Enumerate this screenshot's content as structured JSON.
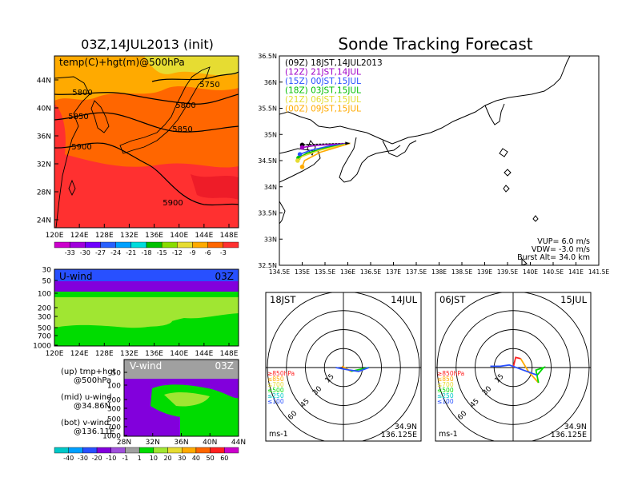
{
  "main_title": "Sonde Tracking Forecast",
  "panels": {
    "temp_map": {
      "title": "03Z,14JUL2013 (init)",
      "label": "temp(C)+hgt(m)@500hPa",
      "lat_ticks": [
        "44N",
        "40N",
        "36N",
        "32N",
        "28N",
        "24N"
      ],
      "lon_ticks": [
        "120E",
        "124E",
        "128E",
        "132E",
        "136E",
        "140E",
        "144E",
        "148E"
      ],
      "contour_labels": [
        "5750",
        "5800",
        "5800",
        "5850",
        "5850",
        "5900",
        "5900"
      ],
      "colorbar_ticks": [
        "-33",
        "-30",
        "-27",
        "-24",
        "-21",
        "-18",
        "-15",
        "-12",
        "-9",
        "-6",
        "-3"
      ],
      "colorbar_colors": [
        "#cc00cc",
        "#a000dc",
        "#6e00ff",
        "#2860ff",
        "#00a0ff",
        "#00dcdc",
        "#00c000",
        "#88dc00",
        "#e6dc32",
        "#ffaa00",
        "#ff6600",
        "#ff3030"
      ]
    },
    "uwind": {
      "label": "U-wind",
      "time": "03Z",
      "p_ticks": [
        "30",
        "50",
        "100",
        "200",
        "300",
        "500",
        "700",
        "1000"
      ],
      "lon_ticks": [
        "120E",
        "124E",
        "128E",
        "132E",
        "136E",
        "140E",
        "144E",
        "148E"
      ]
    },
    "vwind": {
      "label": "V-wind",
      "time": "03Z",
      "p_ticks": [
        "50",
        "100",
        "200",
        "300",
        "500",
        "700",
        "1000"
      ],
      "lat_ticks": [
        "28N",
        "32N",
        "36N",
        "40N",
        "44N"
      ]
    },
    "notes": {
      "lines": [
        "(up) tmp+hgt",
        "@500hPa",
        "(mid) u-wind",
        "@34.86N",
        "(bot) v-wind",
        "@136.11E"
      ]
    },
    "wind_colorbar": {
      "ticks": [
        "-40",
        "-30",
        "-20",
        "-10",
        "-1",
        "1",
        "10",
        "20",
        "30",
        "40",
        "50",
        "60"
      ],
      "colors": [
        "#00c8c8",
        "#00a0ff",
        "#2850ff",
        "#8200dc",
        "#a050dc",
        "#a0a0a0",
        "#00dc00",
        "#a0e632",
        "#e6dc32",
        "#ffaa00",
        "#ff6600",
        "#ff2020",
        "#cc00cc"
      ]
    },
    "track_map": {
      "lat_ticks": [
        "36.5N",
        "36N",
        "35.5N",
        "35N",
        "34.5N",
        "34N",
        "33.5N",
        "33N",
        "32.5N"
      ],
      "lon_ticks": [
        "134.5E",
        "135E",
        "135.5E",
        "136E",
        "136.5E",
        "137E",
        "137.5E",
        "138E",
        "138.5E",
        "139E",
        "139.5E",
        "140E",
        "140.5E",
        "141E",
        "141.5E"
      ],
      "legend": [
        {
          "text": "(09Z)  18JST,14JUL2013",
          "color": "#000000"
        },
        {
          "text": "(12Z)  21JST,14JUL",
          "color": "#a000c8"
        },
        {
          "text": "(15Z)  00JST,15JUL",
          "color": "#2850ff"
        },
        {
          "text": "(18Z)  03JST,15JUL",
          "color": "#00c000"
        },
        {
          "text": "(21Z)  06JST,15JUL",
          "color": "#e6dc32"
        },
        {
          "text": "(00Z)  09JST,15JUL",
          "color": "#ffaa00"
        }
      ],
      "params": [
        "VUP=  6.0  m/s",
        "VDW= -3.0  m/s",
        "Burst Alt=  34.0  km"
      ]
    },
    "hodo_left": {
      "time": "18JST",
      "date": "14JUL",
      "ring_labels": [
        "15",
        "30",
        "45",
        "60"
      ],
      "levels": [
        {
          "text": "≥850hPa",
          "color": "#ff2020"
        },
        {
          "text": "≤850",
          "color": "#ffaa00"
        },
        {
          "text": "≤700",
          "color": "#e6dc32"
        },
        {
          "text": "≤500",
          "color": "#00dc00"
        },
        {
          "text": "≤250",
          "color": "#00c8c8"
        },
        {
          "text": "≤100",
          "color": "#2850ff"
        }
      ],
      "unit": "ms-1",
      "loc_lat": "34.9N",
      "loc_lon": "136.125E"
    },
    "hodo_right": {
      "time": "06JST",
      "date": "15JUL",
      "ring_labels": [
        "15",
        "30",
        "45",
        "60"
      ],
      "levels": [
        {
          "text": "≥850hPa",
          "color": "#ff2020"
        },
        {
          "text": "≤850",
          "color": "#ffaa00"
        },
        {
          "text": "≤700",
          "color": "#e6dc32"
        },
        {
          "text": "≤500",
          "color": "#00dc00"
        },
        {
          "text": "≤250",
          "color": "#00c8c8"
        },
        {
          "text": "≤100",
          "color": "#2850ff"
        }
      ],
      "unit": "ms-1",
      "loc_lat": "34.9N",
      "loc_lon": "136.125E"
    }
  },
  "chart_data": [
    {
      "type": "line",
      "title": "Sonde Tracking Forecast",
      "xlim": [
        134.5,
        141.5
      ],
      "ylim": [
        32.5,
        36.5
      ],
      "series": [
        {
          "name": "(09Z)  18JST,14JUL2013",
          "x": [
            136.05,
            135.7,
            135.3,
            135.0
          ],
          "y": [
            34.83,
            34.82,
            34.81,
            34.8
          ]
        },
        {
          "name": "(12Z)  21JST,14JUL",
          "x": [
            136.05,
            135.7,
            135.3,
            135.0
          ],
          "y": [
            34.83,
            34.81,
            34.79,
            34.75
          ]
        },
        {
          "name": "(15Z)  00JST,15JUL",
          "x": [
            136.05,
            135.6,
            135.2,
            134.95
          ],
          "y": [
            34.83,
            34.78,
            34.7,
            34.62
          ]
        },
        {
          "name": "(18Z)  03JST,15JUL",
          "x": [
            136.05,
            135.5,
            135.1,
            134.92
          ],
          "y": [
            34.83,
            34.74,
            34.64,
            34.55
          ]
        },
        {
          "name": "(21Z)  06JST,15JUL",
          "x": [
            136.05,
            135.4,
            135.0,
            134.9
          ],
          "y": [
            34.83,
            34.7,
            34.58,
            34.5
          ]
        },
        {
          "name": "(00Z)  09JST,15JUL",
          "x": [
            136.05,
            135.4,
            135.05,
            135.0
          ],
          "y": [
            34.83,
            34.66,
            34.5,
            34.38
          ]
        }
      ]
    },
    {
      "type": "line",
      "title": "18JST 14JUL",
      "xlim": [
        -60,
        60
      ],
      "ylim": [
        -60,
        60
      ],
      "series": [
        {
          "name": "≥850hPa",
          "x": [
            0,
            -1
          ],
          "y": [
            0,
            1
          ]
        },
        {
          "name": "≤850",
          "x": [
            -1,
            6
          ],
          "y": [
            1,
            -3
          ]
        },
        {
          "name": "≤500",
          "x": [
            6,
            15,
            20
          ],
          "y": [
            -3,
            -1,
            0
          ]
        },
        {
          "name": "≤100",
          "x": [
            20,
            12,
            5,
            -6
          ],
          "y": [
            0,
            -3,
            -2,
            0
          ]
        }
      ]
    },
    {
      "type": "line",
      "title": "06JST 15JUL",
      "xlim": [
        -60,
        60
      ],
      "ylim": [
        -60,
        60
      ],
      "series": [
        {
          "name": "≥850hPa",
          "x": [
            0,
            2,
            6
          ],
          "y": [
            0,
            8,
            7
          ]
        },
        {
          "name": "≤850",
          "x": [
            6,
            12,
            20
          ],
          "y": [
            7,
            -3,
            -12
          ]
        },
        {
          "name": "≤500",
          "x": [
            20,
            18,
            24,
            19
          ],
          "y": [
            -12,
            -2,
            0,
            -6
          ]
        },
        {
          "name": "≤100",
          "x": [
            19,
            8,
            -3,
            -10,
            -18
          ],
          "y": [
            -6,
            -2,
            2,
            1,
            1
          ]
        }
      ]
    }
  ]
}
